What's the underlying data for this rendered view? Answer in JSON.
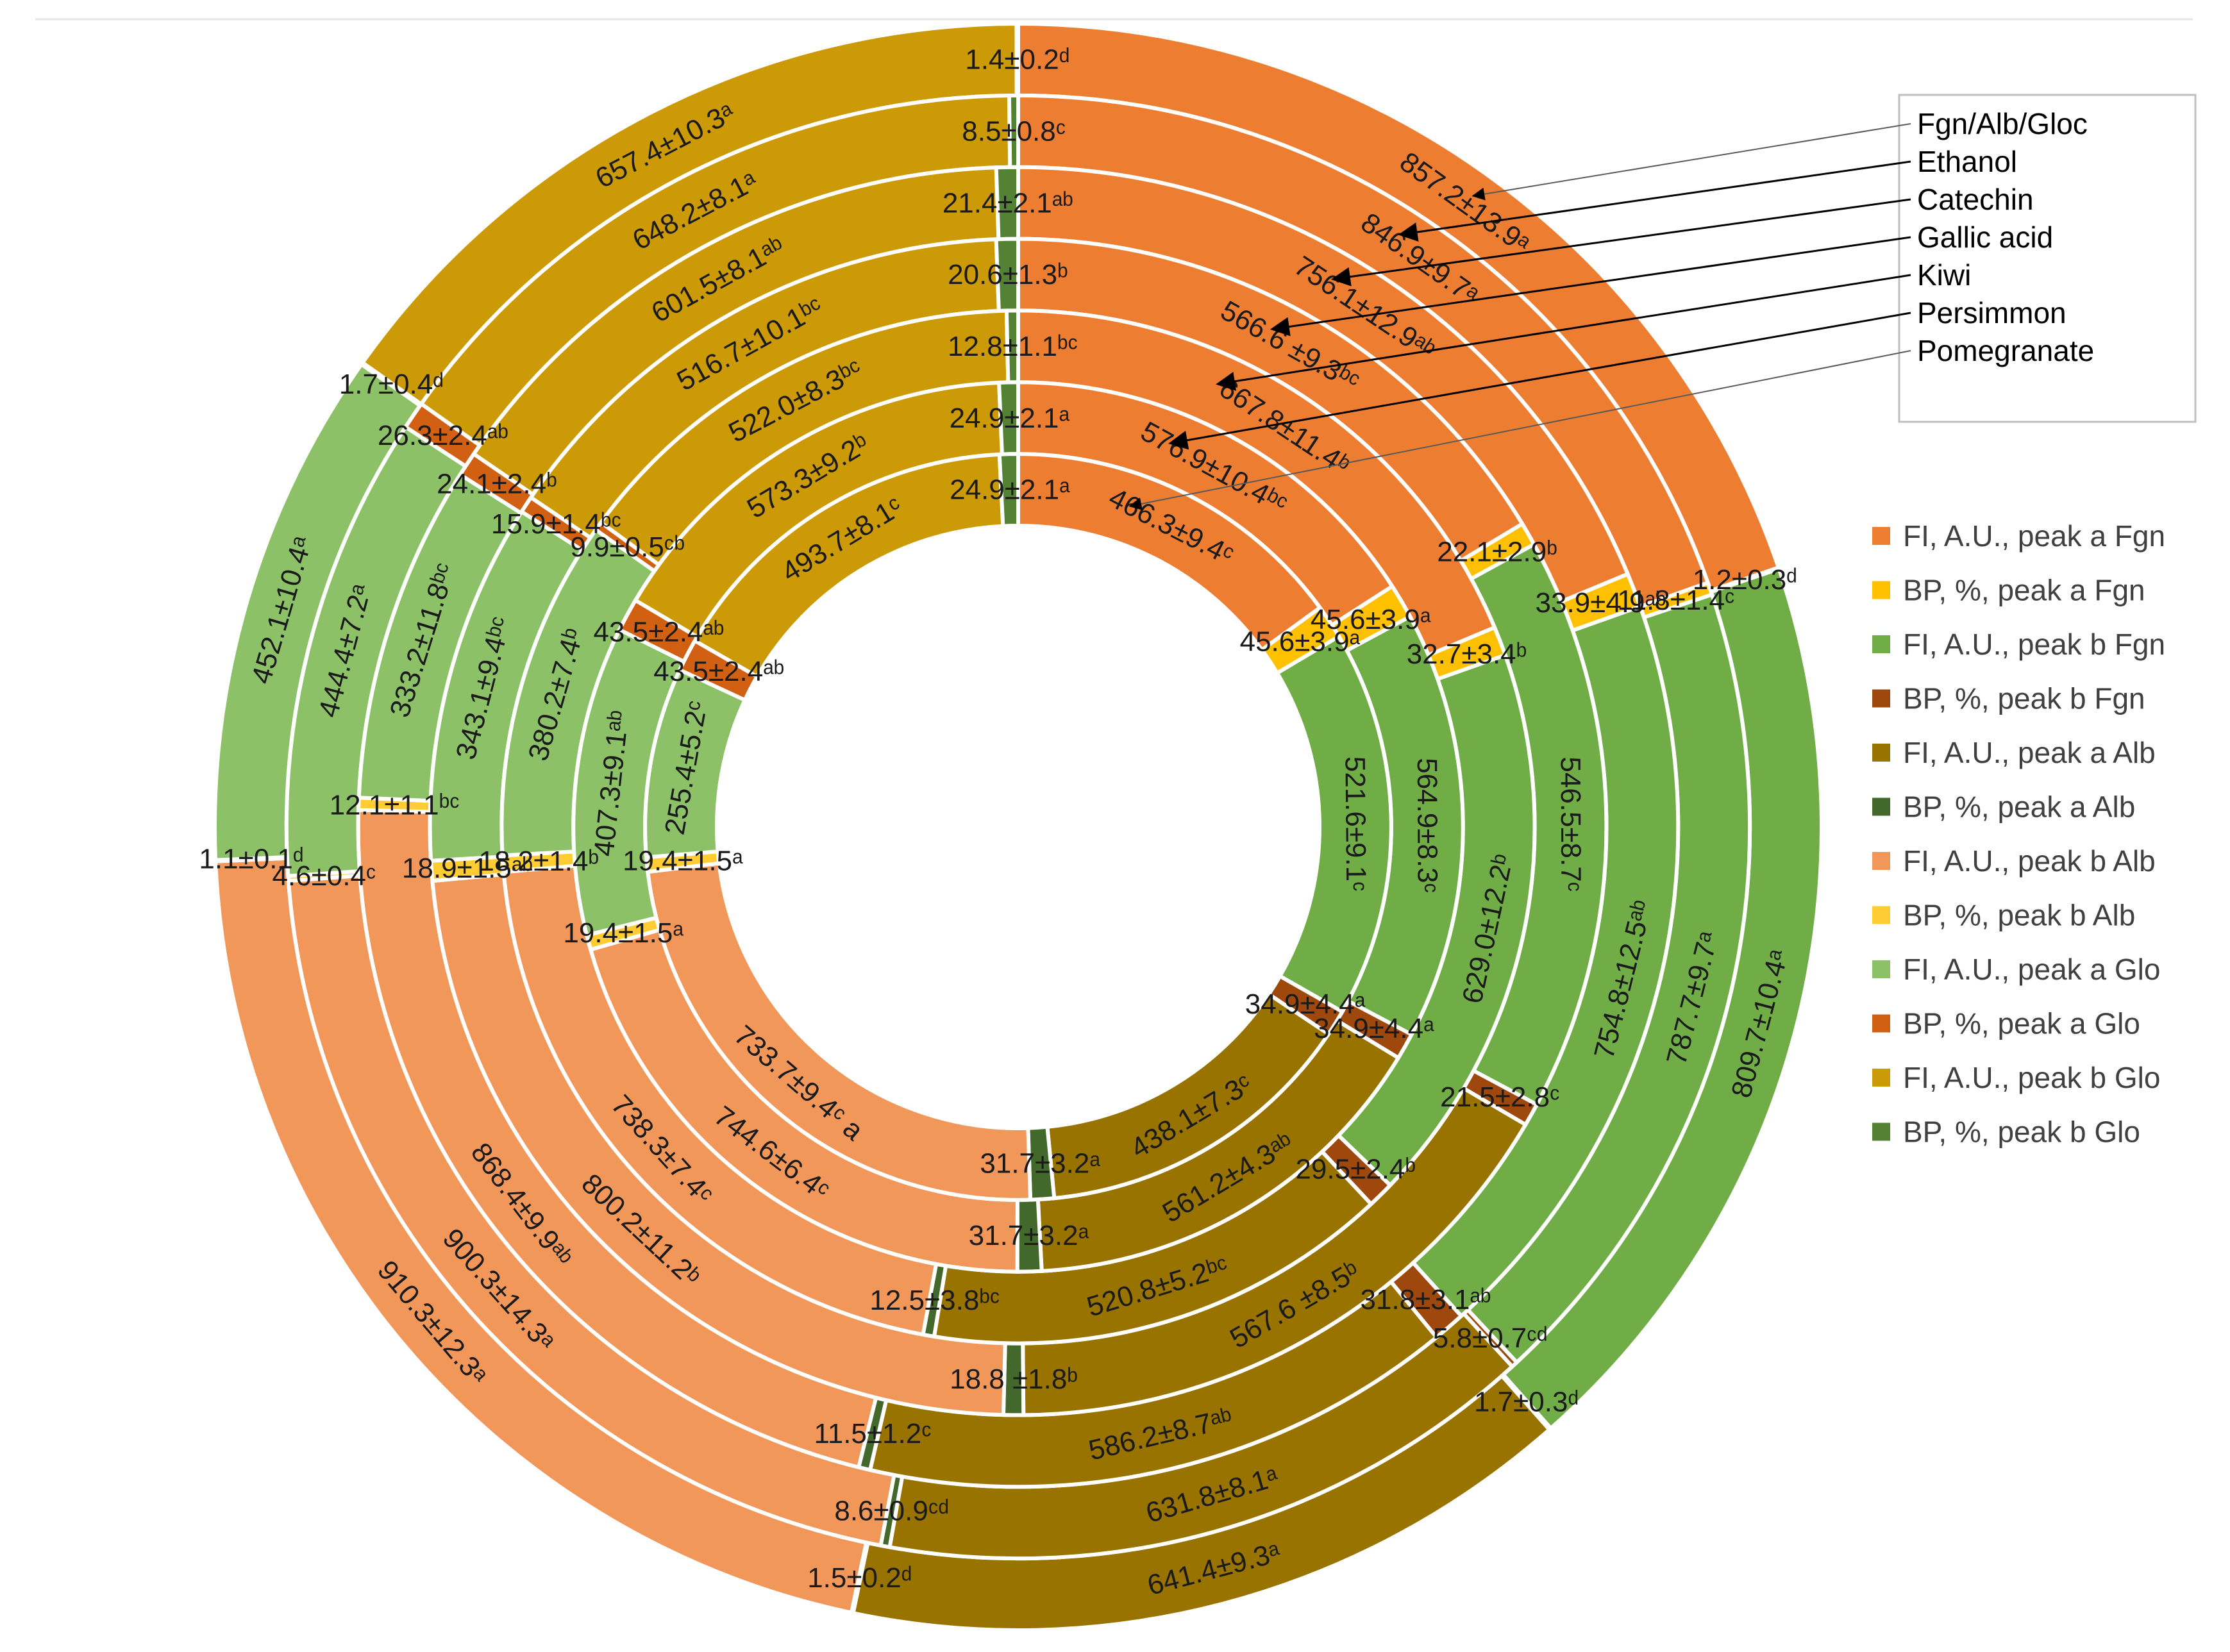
{
  "chart_data": {
    "type": "multi-level donut",
    "legend_rings_title": "Fgn/Alb/Gloc",
    "legend_rings": [
      "Fgn/Alb/Gloc",
      "Ethanol",
      "Catechin",
      "Gallic acid",
      "Kiwi",
      "Persimmon",
      "Pomegranate"
    ],
    "series": [
      {
        "name": "FI, A.U., peak a Fgn",
        "color": "#ED7D31"
      },
      {
        "name": "BP, %, peak a Fgn",
        "color": "#FFC000"
      },
      {
        "name": "FI, A.U., peak b Fgn",
        "color": "#70AD47"
      },
      {
        "name": "BP, %, peak b Fgn",
        "color": "#9E480E"
      },
      {
        "name": "FI, A.U., peak a Alb",
        "color": "#997300"
      },
      {
        "name": "BP, %, peak a Alb",
        "color": "#43682B"
      },
      {
        "name": "FI, A.U., peak b Alb",
        "color": "#F1975A"
      },
      {
        "name": "BP, %, peak b  Alb",
        "color": "#FFCD33"
      },
      {
        "name": "FI, A.U., peak a Glo",
        "color": "#8CC168"
      },
      {
        "name": "BP, %, peak a Glo",
        "color": "#D26012"
      },
      {
        "name": "FI, A.U., peak b Glo",
        "color": "#CC9A06"
      },
      {
        "name": "BP, %, peak b Glo",
        "color": "#548235"
      }
    ],
    "rings": [
      {
        "name": "Fgn/Alb/Gloc",
        "values": [
          857.2,
          1.2,
          809.7,
          1.7,
          641.4,
          1.5,
          910.3,
          1.1,
          452.1,
          1.7,
          657.4,
          1.4
        ],
        "labels": [
          "857.2±13.9ᵃ",
          "1.2±0.3ᵈ",
          "809.7±10.4ᵃ",
          "1.7±0.3ᵈ",
          "641.4±9.3ᵃ",
          "1.5±0.2ᵈ",
          "910.3±12.3ᵃ",
          "1.1±0.1ᵈ",
          "452.1±10.4ᵃ",
          "1.7±0.4ᵈ",
          "657.4±10.3ᵃ",
          "1.4±0.2ᵈ"
        ]
      },
      {
        "name": "Ethanol",
        "values": [
          846.9,
          11.8,
          787.7,
          5.8,
          631.8,
          8.6,
          900.3,
          4.6,
          444.4,
          26.3,
          648.2,
          8.5
        ],
        "labels": [
          "846.9±9.7ᵃ",
          "11.8±1.4ᶜ",
          "787.7±9.7ᵃ",
          "5.8±0.7ᶜᵈ",
          "631.8±8.1ᵃ",
          "8.6±0.9ᶜᵈ",
          "900.3±14.3ᵃ",
          "4.6±0.4ᶜ",
          "444.4±7.2ᵃ",
          "26.3±2.4ᵃᵇ",
          "648.2±8.1ᵃ",
          "8.5±0.8ᶜ"
        ]
      },
      {
        "name": "Catechin",
        "values": [
          756.1,
          33.9,
          754.8,
          31.8,
          586.2,
          11.5,
          868.4,
          12.1,
          333.2,
          24.1,
          601.5,
          21.4
        ],
        "labels": [
          "756.1±12.9ᵃᵇ",
          "33.9±4.9ᵃᵇ",
          "754.8±12.5ᵃᵇ",
          "31.8±3.1ᵃᵇ",
          "586.2±8.7ᵃᵇ",
          "11.5±1.2ᶜ",
          "868.4±9.9ᵃᵇ",
          "12.1±1.1ᵇᶜ",
          "333.2±11.8ᵇᶜ",
          "24.1±2.4ᵇ",
          "601.5±8.1ᵃᵇ",
          "21.4±2.1ᵃᵇ"
        ]
      },
      {
        "name": "Gallic acid",
        "values": [
          566.6,
          22.1,
          546.5,
          21.5,
          567.6,
          18.8,
          800.2,
          18.9,
          343.1,
          15.9,
          516.7,
          20.6
        ],
        "labels": [
          "566.6 ±9.3ᵇᶜ",
          "22.1±2.9ᵇ",
          "546.5±8.7ᶜ",
          "21.5±2.8ᶜ",
          "567.6 ±8.5ᵇ",
          "18.8 ±1.8ᵇ",
          "800.2±11.2ᵇ",
          "18.9±1.5ᵃᵇ",
          "343.1±9.4ᵇᶜ",
          "15.9±1.4ᵇᶜ",
          "516.7±10.1ᵇᶜ",
          "20.6±1.3ᵇ"
        ]
      },
      {
        "name": "Kiwi",
        "values": [
          667.8,
          32.7,
          629.0,
          29.5,
          520.8,
          12.5,
          738.3,
          18.2,
          380.2,
          9.9,
          522.0,
          12.8
        ],
        "labels": [
          "667.8±11.4ᵇ",
          "32.7±3.4ᵇ",
          "629.0±12.2ᵇ",
          "29.5±2.4ᵇ",
          "520.8±5.2ᵇᶜ",
          "12.5±3.8ᵇᶜ",
          "738.3±7.4ᶜ",
          "18.2±1.4ᵇ",
          "380.2±7.4ᵇ",
          "9.9±0.5ᶜᵇ",
          "522.0±8.3ᵇᶜ",
          "12.8±1.1ᵇᶜ"
        ]
      },
      {
        "name": "Persimmon",
        "values": [
          576.9,
          45.6,
          564.9,
          34.9,
          561.2,
          31.7,
          744.6,
          19.4,
          407.3,
          43.5,
          573.3,
          24.9
        ],
        "labels": [
          "576.9±10.4ᵇᶜ",
          "45.6±3.9ᵃ",
          "564.9±8.3ᶜ",
          "34.9±4.4ᵃ",
          "561.2±4.3ᵃᵇ",
          "31.7±3.2ᵃ",
          "744.6±6.4ᶜ",
          "19.4±1.5ᵃ",
          "407.3±9.1ᵃᵇ",
          "43.5±2.4ᵃᵇ",
          "573.3±9.2ᵇ",
          "24.9±2.1ᵃ"
        ]
      },
      {
        "name": "Pomegranate",
        "values": [
          466.3,
          45.6,
          521.6,
          34.9,
          438.1,
          31.7,
          733.7,
          19.4,
          255.4,
          43.5,
          493.7,
          24.9
        ],
        "labels": [
          "466.3±9.4ᶜ",
          "45.6±3.9ᵃ",
          "521.6±9.1ᶜ",
          "34.9±4.4ᵃ",
          "438.1±7.3ᶜ",
          "31.7±3.2ᵃ",
          "733.7±9.4ᶜ a",
          "19.4±1.5ᵃ",
          "255.4±5.2ᶜ",
          "43.5±2.4ᵃᵇ",
          "493.7±8.1ᶜ",
          "24.9±2.1ᵃ"
        ]
      }
    ]
  }
}
